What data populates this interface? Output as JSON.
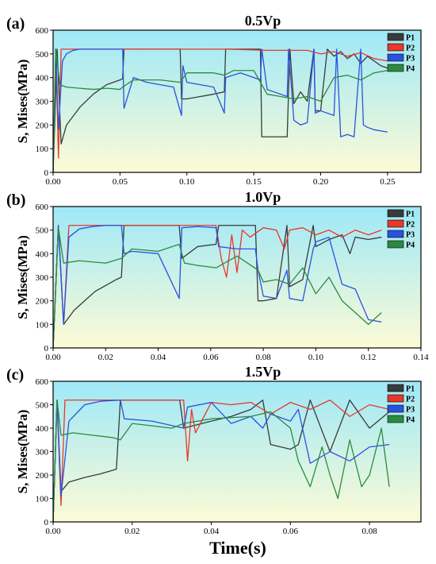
{
  "figure": {
    "xlabel": "Time(s)"
  },
  "colors": {
    "P1": "#3a3a3a",
    "P2": "#e8372b",
    "P3": "#2a52e0",
    "P4": "#2c8a3f",
    "bg_top": "#9ee8f7",
    "bg_bottom": "#fdfbd6"
  },
  "chart_data": [
    {
      "type": "line",
      "panel_label": "(a)",
      "title": "0.5Vp",
      "ylabel": "S, Mises(MPa)",
      "xlabel": "",
      "xlim": [
        0,
        0.275
      ],
      "ylim": [
        0,
        600
      ],
      "xticks": [
        "0.00",
        "0.05",
        "0.10",
        "0.15",
        "0.20",
        "0.25"
      ],
      "xtick_values": [
        0,
        0.05,
        0.1,
        0.15,
        0.2,
        0.25
      ],
      "yticks": [
        "0",
        "100",
        "200",
        "300",
        "400",
        "500",
        "600"
      ],
      "ytick_values": [
        0,
        100,
        200,
        300,
        400,
        500,
        600
      ],
      "legend": "top-right",
      "series": [
        {
          "name": "P1",
          "x": [
            0,
            0.003,
            0.006,
            0.01,
            0.02,
            0.03,
            0.04,
            0.05,
            0.052,
            0.053,
            0.06,
            0.07,
            0.08,
            0.09,
            0.095,
            0.096,
            0.1,
            0.11,
            0.12,
            0.128,
            0.129,
            0.14,
            0.15,
            0.155,
            0.156,
            0.16,
            0.175,
            0.177,
            0.18,
            0.185,
            0.19,
            0.195,
            0.196,
            0.2,
            0.205,
            0.21,
            0.215,
            0.22,
            0.225,
            0.23,
            0.235,
            0.24,
            0.245,
            0.25
          ],
          "y": [
            0,
            520,
            120,
            200,
            275,
            330,
            370,
            390,
            395,
            520,
            520,
            520,
            520,
            520,
            520,
            310,
            310,
            320,
            330,
            340,
            520,
            520,
            520,
            520,
            150,
            150,
            150,
            520,
            290,
            340,
            300,
            520,
            260,
            260,
            520,
            490,
            510,
            480,
            500,
            460,
            490,
            470,
            450,
            440
          ]
        },
        {
          "name": "P2",
          "x": [
            0,
            0.002,
            0.004,
            0.006,
            0.05,
            0.055,
            0.1,
            0.13,
            0.16,
            0.19,
            0.2,
            0.21,
            0.22,
            0.23,
            0.24,
            0.25
          ],
          "y": [
            0,
            520,
            60,
            520,
            520,
            520,
            520,
            520,
            515,
            515,
            500,
            510,
            490,
            505,
            480,
            470
          ]
        },
        {
          "name": "P3",
          "x": [
            0,
            0.002,
            0.004,
            0.007,
            0.01,
            0.015,
            0.02,
            0.03,
            0.04,
            0.052,
            0.053,
            0.06,
            0.07,
            0.08,
            0.09,
            0.096,
            0.097,
            0.1,
            0.11,
            0.12,
            0.128,
            0.129,
            0.14,
            0.15,
            0.155,
            0.156,
            0.16,
            0.165,
            0.175,
            0.176,
            0.18,
            0.185,
            0.19,
            0.195,
            0.196,
            0.2,
            0.21,
            0.212,
            0.215,
            0.22,
            0.225,
            0.23,
            0.232,
            0.235,
            0.24,
            0.25
          ],
          "y": [
            0,
            520,
            180,
            470,
            500,
            515,
            520,
            520,
            520,
            520,
            270,
            400,
            380,
            370,
            360,
            240,
            450,
            380,
            370,
            360,
            250,
            400,
            420,
            400,
            390,
            520,
            350,
            340,
            320,
            520,
            220,
            200,
            210,
            520,
            250,
            260,
            240,
            520,
            150,
            160,
            150,
            520,
            200,
            190,
            180,
            170
          ]
        },
        {
          "name": "P4",
          "x": [
            0,
            0.002,
            0.005,
            0.01,
            0.02,
            0.03,
            0.04,
            0.05,
            0.052,
            0.06,
            0.08,
            0.095,
            0.1,
            0.12,
            0.128,
            0.135,
            0.15,
            0.155,
            0.16,
            0.17,
            0.18,
            0.19,
            0.2,
            0.21,
            0.22,
            0.23,
            0.24,
            0.25
          ],
          "y": [
            0,
            520,
            370,
            360,
            355,
            350,
            355,
            350,
            360,
            390,
            390,
            380,
            420,
            420,
            410,
            430,
            430,
            380,
            330,
            320,
            310,
            320,
            300,
            400,
            410,
            390,
            420,
            430
          ]
        }
      ]
    },
    {
      "type": "line",
      "panel_label": "(b)",
      "title": "1.0Vp",
      "ylabel": "S, Mises(MPa)",
      "xlabel": "",
      "xlim": [
        0,
        0.14
      ],
      "ylim": [
        0,
        600
      ],
      "xticks": [
        "0.00",
        "0.02",
        "0.04",
        "0.06",
        "0.08",
        "0.10",
        "0.12",
        "0.14"
      ],
      "xtick_values": [
        0,
        0.02,
        0.04,
        0.06,
        0.08,
        0.1,
        0.12,
        0.14
      ],
      "yticks": [
        "0",
        "100",
        "200",
        "300",
        "400",
        "500",
        "600"
      ],
      "ytick_values": [
        0,
        100,
        200,
        300,
        400,
        500,
        600
      ],
      "legend": "top-right",
      "series": [
        {
          "name": "P1",
          "x": [
            0,
            0.002,
            0.004,
            0.008,
            0.012,
            0.016,
            0.02,
            0.024,
            0.026,
            0.027,
            0.04,
            0.048,
            0.049,
            0.055,
            0.062,
            0.063,
            0.07,
            0.077,
            0.078,
            0.08,
            0.085,
            0.089,
            0.09,
            0.095,
            0.099,
            0.1,
            0.105,
            0.11,
            0.113,
            0.115,
            0.12,
            0.125
          ],
          "y": [
            0,
            520,
            100,
            160,
            200,
            240,
            265,
            290,
            300,
            520,
            520,
            520,
            380,
            430,
            440,
            520,
            520,
            520,
            200,
            200,
            210,
            520,
            260,
            290,
            520,
            430,
            460,
            480,
            400,
            470,
            460,
            470
          ]
        },
        {
          "name": "P2",
          "x": [
            0,
            0.002,
            0.004,
            0.006,
            0.027,
            0.048,
            0.062,
            0.064,
            0.066,
            0.068,
            0.07,
            0.072,
            0.075,
            0.08,
            0.085,
            0.088,
            0.09,
            0.095,
            0.1,
            0.105,
            0.11,
            0.115,
            0.12,
            0.125
          ],
          "y": [
            0,
            520,
            100,
            520,
            520,
            520,
            520,
            380,
            300,
            480,
            320,
            500,
            470,
            510,
            500,
            420,
            500,
            510,
            480,
            500,
            470,
            500,
            480,
            500
          ]
        },
        {
          "name": "P3",
          "x": [
            0,
            0.002,
            0.004,
            0.006,
            0.01,
            0.015,
            0.02,
            0.026,
            0.027,
            0.03,
            0.04,
            0.048,
            0.049,
            0.055,
            0.062,
            0.063,
            0.07,
            0.077,
            0.078,
            0.08,
            0.085,
            0.089,
            0.09,
            0.095,
            0.099,
            0.1,
            0.105,
            0.11,
            0.115,
            0.12,
            0.125
          ],
          "y": [
            0,
            520,
            100,
            470,
            505,
            515,
            520,
            520,
            400,
            410,
            400,
            210,
            510,
            515,
            510,
            430,
            420,
            420,
            330,
            220,
            210,
            330,
            210,
            200,
            420,
            450,
            470,
            270,
            250,
            120,
            110
          ]
        },
        {
          "name": "P4",
          "x": [
            0,
            0.002,
            0.004,
            0.01,
            0.02,
            0.026,
            0.03,
            0.04,
            0.048,
            0.05,
            0.055,
            0.062,
            0.07,
            0.078,
            0.08,
            0.085,
            0.09,
            0.095,
            0.1,
            0.105,
            0.11,
            0.115,
            0.12,
            0.125
          ],
          "y": [
            0,
            510,
            360,
            370,
            360,
            380,
            420,
            410,
            440,
            360,
            350,
            340,
            390,
            330,
            280,
            290,
            270,
            340,
            230,
            300,
            200,
            150,
            100,
            150
          ]
        }
      ]
    },
    {
      "type": "line",
      "panel_label": "(c)",
      "title": "1.5Vp",
      "ylabel": "S, Mises(MPa)",
      "xlabel": "Time(s)",
      "xlim": [
        0,
        0.093
      ],
      "ylim": [
        0,
        600
      ],
      "xticks": [
        "0.00",
        "0.02",
        "0.04",
        "0.06",
        "0.08"
      ],
      "xtick_values": [
        0,
        0.02,
        0.04,
        0.06,
        0.08
      ],
      "yticks": [
        "0",
        "100",
        "200",
        "300",
        "400",
        "500",
        "600"
      ],
      "ytick_values": [
        0,
        100,
        200,
        300,
        400,
        500,
        600
      ],
      "legend": "top-right",
      "series": [
        {
          "name": "P1",
          "x": [
            0,
            0.001,
            0.002,
            0.004,
            0.008,
            0.012,
            0.016,
            0.017,
            0.018,
            0.025,
            0.032,
            0.033,
            0.04,
            0.045,
            0.05,
            0.053,
            0.055,
            0.06,
            0.062,
            0.065,
            0.07,
            0.075,
            0.08,
            0.085
          ],
          "y": [
            0,
            520,
            130,
            170,
            190,
            205,
            225,
            520,
            520,
            520,
            520,
            400,
            430,
            450,
            480,
            520,
            330,
            310,
            330,
            520,
            300,
            520,
            400,
            470
          ]
        },
        {
          "name": "P2",
          "x": [
            0,
            0.001,
            0.002,
            0.003,
            0.017,
            0.033,
            0.034,
            0.035,
            0.036,
            0.04,
            0.045,
            0.05,
            0.055,
            0.06,
            0.065,
            0.07,
            0.075,
            0.08,
            0.085
          ],
          "y": [
            0,
            520,
            70,
            520,
            520,
            520,
            260,
            480,
            380,
            510,
            500,
            510,
            460,
            510,
            480,
            520,
            450,
            500,
            480
          ]
        },
        {
          "name": "P3",
          "x": [
            0,
            0.001,
            0.002,
            0.004,
            0.008,
            0.012,
            0.017,
            0.018,
            0.025,
            0.033,
            0.034,
            0.04,
            0.045,
            0.05,
            0.053,
            0.055,
            0.06,
            0.062,
            0.065,
            0.07,
            0.075,
            0.08,
            0.085
          ],
          "y": [
            0,
            520,
            110,
            430,
            500,
            515,
            520,
            440,
            430,
            400,
            490,
            510,
            420,
            450,
            400,
            460,
            430,
            480,
            250,
            300,
            260,
            320,
            330
          ]
        },
        {
          "name": "P4",
          "x": [
            0,
            0.001,
            0.002,
            0.005,
            0.01,
            0.015,
            0.017,
            0.02,
            0.03,
            0.033,
            0.04,
            0.05,
            0.055,
            0.06,
            0.062,
            0.065,
            0.068,
            0.07,
            0.072,
            0.075,
            0.078,
            0.08,
            0.083,
            0.085
          ],
          "y": [
            0,
            520,
            370,
            380,
            370,
            360,
            350,
            420,
            400,
            420,
            440,
            450,
            470,
            400,
            260,
            150,
            320,
            200,
            100,
            350,
            150,
            200,
            400,
            150
          ]
        }
      ]
    }
  ]
}
